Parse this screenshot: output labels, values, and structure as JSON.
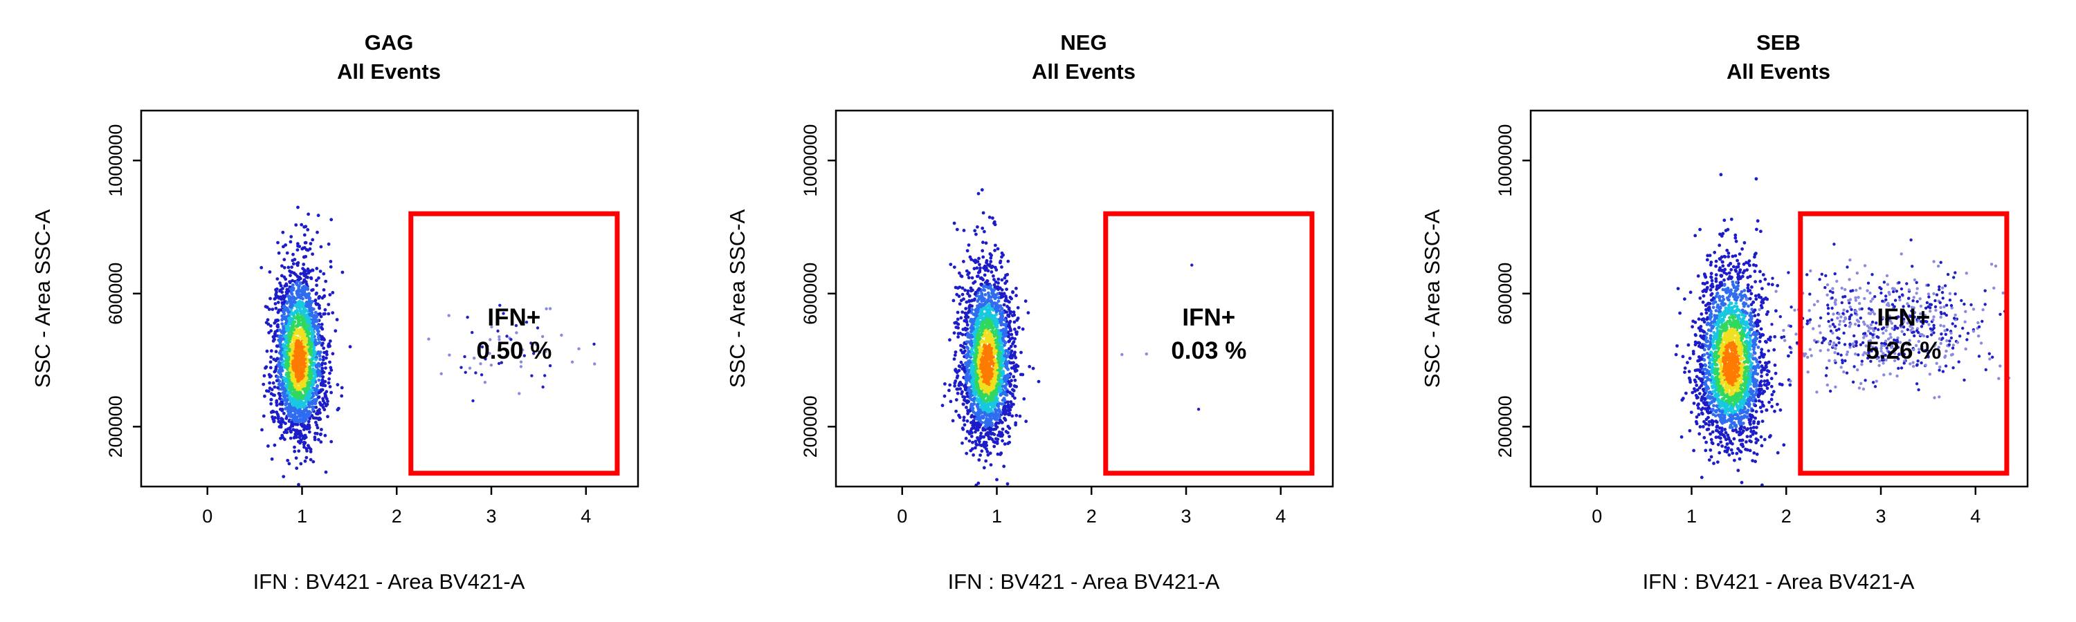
{
  "chart_data": [
    {
      "type": "scatter",
      "title": "GAG",
      "subtitle": "All Events",
      "xlabel": "IFN : BV421 - Area BV421-A",
      "ylabel": "SSC - Area SSC-A",
      "xlim": [
        -0.7,
        4.55
      ],
      "ylim": [
        20000,
        1150000
      ],
      "xticks": [
        0,
        1,
        2,
        3,
        4
      ],
      "yticks": [
        200000,
        600000,
        1000000
      ],
      "xtick_labels": [
        "0",
        "1",
        "2",
        "3",
        "4"
      ],
      "ytick_labels": [
        "200000",
        "600000",
        "1000000"
      ],
      "gate": {
        "label": "IFN+",
        "value": "0.50 %",
        "x": [
          2.15,
          4.33
        ],
        "y": [
          60000,
          840000
        ]
      },
      "main_population": {
        "center": [
          0.97,
          390000
        ],
        "spread_x": 0.14,
        "spread_y": 110000
      },
      "positive_population": {
        "center": [
          3.25,
          440000
        ],
        "spread_x": 0.45,
        "spread_y": 70000,
        "share": 0.005
      }
    },
    {
      "type": "scatter",
      "title": "NEG",
      "subtitle": "All Events",
      "xlabel": "IFN : BV421 - Area BV421-A",
      "ylabel": "SSC - Area SSC-A",
      "xlim": [
        -0.7,
        4.55
      ],
      "ylim": [
        20000,
        1150000
      ],
      "xticks": [
        0,
        1,
        2,
        3,
        4
      ],
      "yticks": [
        200000,
        600000,
        1000000
      ],
      "xtick_labels": [
        "0",
        "1",
        "2",
        "3",
        "4"
      ],
      "ytick_labels": [
        "200000",
        "600000",
        "1000000"
      ],
      "gate": {
        "label": "IFN+",
        "value": "0.03 %",
        "x": [
          2.15,
          4.33
        ],
        "y": [
          60000,
          840000
        ]
      },
      "main_population": {
        "center": [
          0.9,
          380000
        ],
        "spread_x": 0.14,
        "spread_y": 110000
      },
      "positive_population": {
        "center": [
          2.5,
          450000
        ],
        "spread_x": 0.4,
        "spread_y": 120000,
        "share": 0.0003
      }
    },
    {
      "type": "scatter",
      "title": "SEB",
      "subtitle": "All Events",
      "xlabel": "IFN : BV421 - Area BV421-A",
      "ylabel": "SSC - Area SSC-A",
      "xlim": [
        -0.7,
        4.55
      ],
      "ylim": [
        20000,
        1150000
      ],
      "xticks": [
        0,
        1,
        2,
        3,
        4
      ],
      "yticks": [
        200000,
        600000,
        1000000
      ],
      "xtick_labels": [
        "0",
        "1",
        "2",
        "3",
        "4"
      ],
      "ytick_labels": [
        "200000",
        "600000",
        "1000000"
      ],
      "gate": {
        "label": "IFN+",
        "value": "5.26 %",
        "x": [
          2.15,
          4.33
        ],
        "y": [
          60000,
          840000
        ]
      },
      "main_population": {
        "center": [
          1.42,
          380000
        ],
        "spread_x": 0.18,
        "spread_y": 115000
      },
      "positive_population": {
        "center": [
          3.05,
          500000
        ],
        "spread_x": 0.55,
        "spread_y": 80000,
        "share": 0.0526
      }
    }
  ]
}
